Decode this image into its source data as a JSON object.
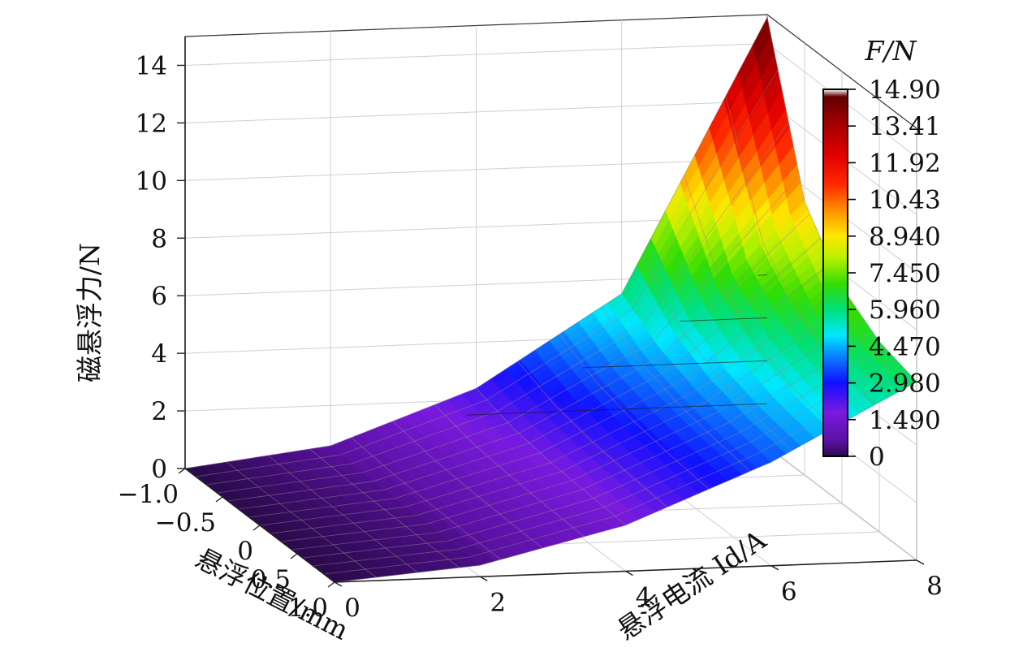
{
  "chart_data": {
    "type": "surface3d",
    "z_axis_label": "磁悬浮力/N",
    "x_axis_label": "悬浮位置/mm",
    "y_axis_label": "悬浮电流 Id/A",
    "colorbar_title": "F/N",
    "x_ticks": [
      "−1.0",
      "−0.5",
      "0",
      "0.5",
      "1.0"
    ],
    "y_ticks": [
      "0",
      "2",
      "4",
      "6",
      "8"
    ],
    "z_ticks": [
      "0",
      "2",
      "4",
      "6",
      "8",
      "10",
      "12",
      "14"
    ],
    "colorbar_ticks": [
      "14.90",
      "13.41",
      "11.92",
      "10.43",
      "8.940",
      "7.450",
      "5.960",
      "4.470",
      "2.980",
      "1.490",
      "0"
    ],
    "x_range": [
      -1.0,
      1.0
    ],
    "y_range": [
      0,
      8
    ],
    "z_range": [
      0,
      15
    ],
    "colorbar_range": [
      0,
      14.9
    ],
    "surface": {
      "x": [
        -1.0,
        -0.5,
        0,
        0.5,
        1.0
      ],
      "y": [
        0,
        2,
        4,
        6,
        8
      ],
      "z": [
        [
          0.0,
          0.6,
          2.4,
          5.5,
          14.9
        ],
        [
          0.0,
          0.5,
          2.0,
          4.6,
          9.5
        ],
        [
          0.0,
          0.45,
          1.8,
          4.1,
          7.5
        ],
        [
          0.0,
          0.4,
          1.7,
          3.8,
          6.6
        ],
        [
          0.0,
          0.4,
          1.6,
          3.6,
          6.2
        ]
      ]
    },
    "grid": true
  }
}
